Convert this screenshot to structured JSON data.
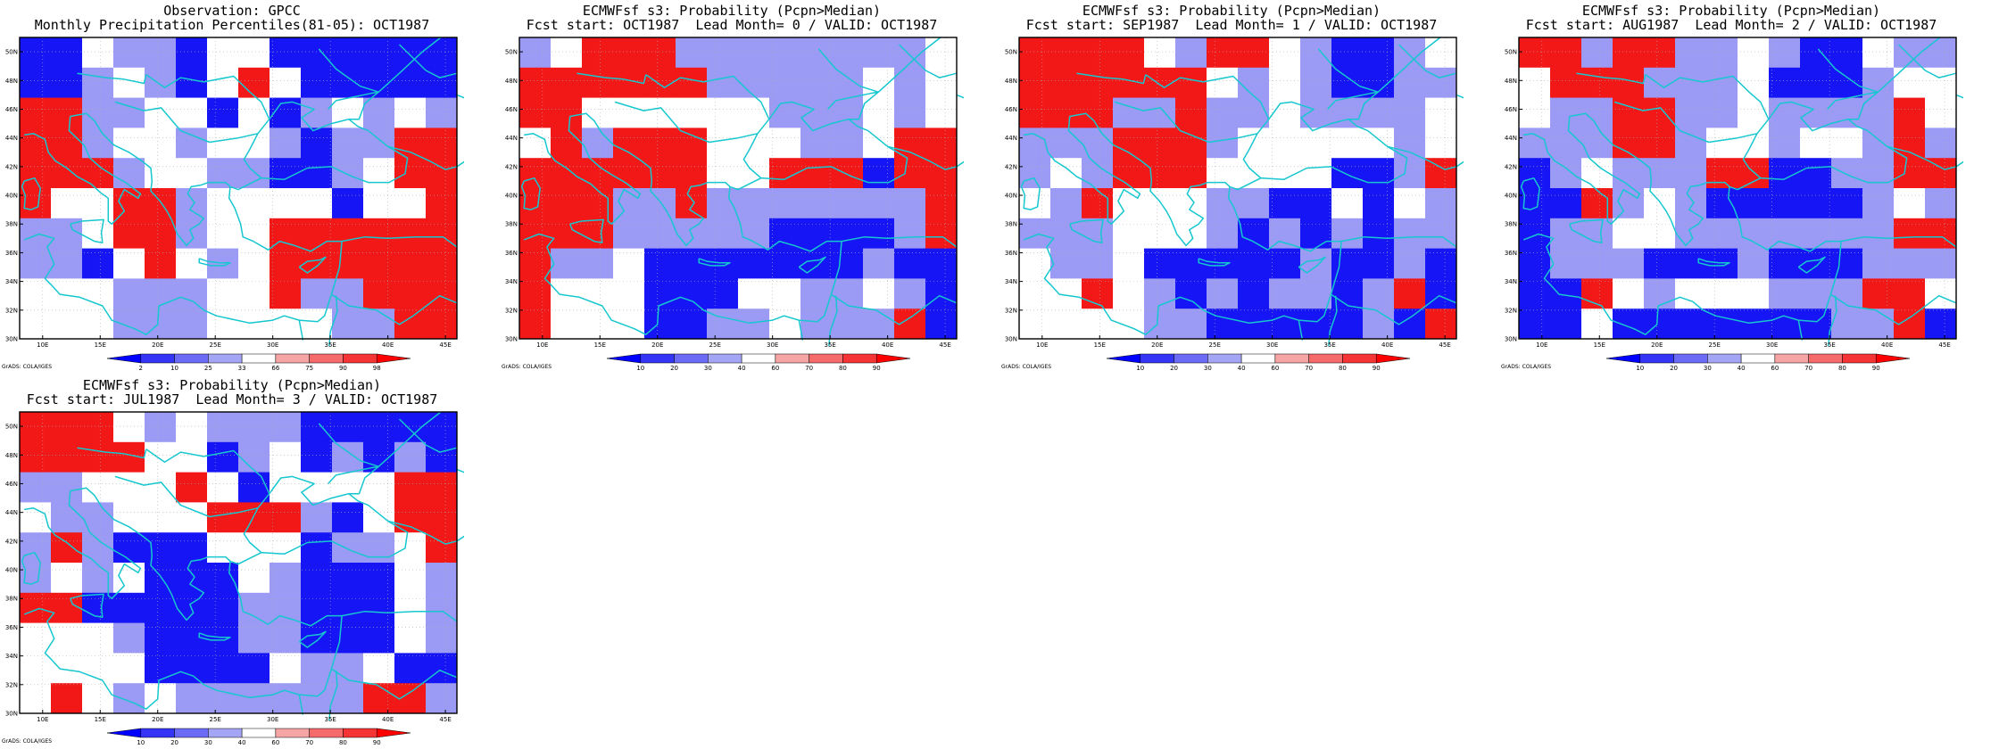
{
  "panels": [
    {
      "id": "obs",
      "title_line1": "Observation: GPCC",
      "title_line2": "Monthly Precipitation Percentiles(81-05): OCT1987",
      "colorbar_labels": [
        "2",
        "10",
        "25",
        "33",
        "66",
        "75",
        "90",
        "98"
      ],
      "credit": "GrADS: COLA/IGES",
      "grid": [
        "BBWLLBWWBBBBBB",
        "BBLWLBWRWBBBBB",
        "RRLLWWBWBLWLWL",
        "RRLWWLWWLBLLRR",
        "RRRLWWLLBBLWRR",
        "RWWRRLWWWWBWWR",
        "LLWRRLWWRRRRRR",
        "LLBWRWLWRRRRRR",
        "WWWLLLWWRLLRRR",
        "WWWLLLWWWWLLRR"
      ]
    },
    {
      "id": "lead0",
      "title_line1": "ECMWFsf s3: Probability (Pcpn>Median)",
      "title_line2": "Fcst start: OCT1987  Lead Month= 0 / VALID: OCT1987",
      "colorbar_labels": [
        "10",
        "20",
        "30",
        "40",
        "60",
        "70",
        "80",
        "90"
      ],
      "credit": "GrADS: COLA/IGES",
      "grid": [
        "LWRRRLLLLLLLLW",
        "RRRRRRLLLLLWLW",
        "RRWWWWWWLLLWLW",
        "WRLRRRWWWLLWRR",
        "RRRRRRWWRRRBRR",
        "RRRLLRLLLLLLLR",
        "RRRLLLLLBBBBLR",
        "RLLWBBBBBBBLBB",
        "RWWWBBBWWLLWLB",
        "RWWWBBLLWLLLRB"
      ]
    },
    {
      "id": "lead1",
      "title_line1": "ECMWFsf s3: Probability (Pcpn>Median)",
      "title_line2": "Fcst start: SEP1987  Lead Month= 1 / VALID: OCT1987",
      "colorbar_labels": [
        "10",
        "20",
        "30",
        "40",
        "60",
        "70",
        "80",
        "90"
      ],
      "credit": "GrADS: COLA/IGES",
      "grid": [
        "RRRRWLRRWLBBLW",
        "RRRRRRWLWLBBLL",
        "RRRLLRLLWLLLLW",
        "LLLRRRLWWWWWLW",
        "LWLRRRWWWWBBLR",
        "WLRWWWLLBBWBWL",
        "LLLWWWLBLBLBLL",
        "WLLWBBBBBLBBLB",
        "WWRWLBLBLLBLRB",
        "WWWWLLBBBBBLBR"
      ]
    },
    {
      "id": "lead2",
      "title_line1": "ECMWFsf s3: Probability (Pcpn>Median)",
      "title_line2": "Fcst start: AUG1987  Lead Month= 2 / VALID: OCT1987",
      "colorbar_labels": [
        "10",
        "20",
        "30",
        "40",
        "60",
        "70",
        "80",
        "90"
      ],
      "credit": "GrADS: COLA/IGES",
      "grid": [
        "RRLRRLLWLBBWLL",
        "WRRRLLLWBBBLWW",
        "WLLRRLLWLLLLRW",
        "LLLRRLWWLWWLRL",
        "BLWLLLRRBBLLRR",
        "BBRLWLBBBBBLWL",
        "BLLWWLLLLLLLRR",
        "BLLLBBBLBBBLLL",
        "BBRWLWWWLLLRRW",
        "BBWBBBBBBBLLRB"
      ]
    },
    {
      "id": "lead3",
      "title_line1": "ECMWFsf s3: Probability (Pcpn>Median)",
      "title_line2": "Fcst start: JUL1987  Lead Month= 3 / VALID: OCT1987",
      "colorbar_labels": [
        "10",
        "20",
        "30",
        "40",
        "60",
        "70",
        "80",
        "90"
      ],
      "credit": "GrADS: COLA/IGES",
      "grid": [
        "RRRWLWLLLBBBBB",
        "RRRRWWBLWBLBLB",
        "LLWWWRWBWWWWRR",
        "WLLWWWRRRLBWRR",
        "LRLBBBWWWBLLWR",
        "LWLWBBBWLBBBWL",
        "RRBBBBBLLBBBWL",
        "WWWLBBBLLBBBWL",
        "WWWWBBBBWLLWBB",
        "WRWLWLLLLLLRRL"
      ]
    }
  ],
  "map": {
    "lon_min": 8,
    "lon_max": 46,
    "lat_min": 30,
    "lat_max": 51,
    "lon_ticks": [
      10,
      15,
      20,
      25,
      30,
      35,
      40,
      45
    ],
    "lon_tick_labels": [
      "10E",
      "15E",
      "20E",
      "25E",
      "30E",
      "35E",
      "40E",
      "45E"
    ],
    "lat_ticks": [
      30,
      32,
      34,
      36,
      38,
      40,
      42,
      44,
      46,
      48,
      50
    ],
    "lat_tick_labels": [
      "30N",
      "32N",
      "34N",
      "36N",
      "38N",
      "40N",
      "42N",
      "44N",
      "46N",
      "48N",
      "50N"
    ],
    "coastline_color": "#16c7cf"
  },
  "palette": {
    "B": "#1515f5",
    "L": "#9b9bf5",
    "W": "#ffffff",
    "P": "#f5a5a5",
    "R": "#f21818",
    "colorbar_colors": [
      "#0000ff",
      "#3535f5",
      "#6b6bf5",
      "#a5a5f5",
      "#ffffff",
      "#f5a5a5",
      "#f56b6b",
      "#f53535",
      "#ff0000"
    ]
  }
}
